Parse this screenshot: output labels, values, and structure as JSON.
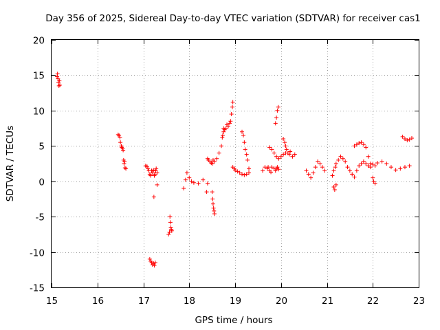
{
  "chart_data": {
    "type": "scatter",
    "title": "Day 356 of 2025, Sidereal Day-to-day VTEC variation (SDTVAR) for receiver cas1",
    "xlabel": "GPS time / hours",
    "ylabel": "SDTVAR / TECUs",
    "xlim": [
      15,
      23
    ],
    "ylim": [
      -15,
      20
    ],
    "xticks": [
      15,
      16,
      17,
      18,
      19,
      20,
      21,
      22,
      23
    ],
    "yticks": [
      -15,
      -10,
      -5,
      0,
      5,
      10,
      15,
      20
    ],
    "grid": true,
    "legend": "none",
    "marker": "plus",
    "color": "#ff0000",
    "series": [
      {
        "name": "SDTVAR",
        "x": [
          15.12,
          15.13,
          15.14,
          15.15,
          15.16,
          15.17,
          15.18,
          16.45,
          16.47,
          16.49,
          16.5,
          16.52,
          16.53,
          16.55,
          16.56,
          16.57,
          16.58,
          16.59,
          16.6,
          16.62,
          17.05,
          17.08,
          17.1,
          17.12,
          17.14,
          17.16,
          17.18,
          17.2,
          17.22,
          17.24,
          17.25,
          17.27,
          17.28,
          17.3,
          17.14,
          17.16,
          17.18,
          17.2,
          17.22,
          17.24,
          17.26,
          17.23,
          17.3,
          17.55,
          17.57,
          17.58,
          17.59,
          17.6,
          17.61,
          17.62,
          17.88,
          17.92,
          17.95,
          18.0,
          18.05,
          18.1,
          18.2,
          18.3,
          18.38,
          18.4,
          18.4,
          18.42,
          18.45,
          18.48,
          18.5,
          18.52,
          18.55,
          18.6,
          18.65,
          18.7,
          18.72,
          18.75,
          18.5,
          18.51,
          18.52,
          18.53,
          18.54,
          18.55,
          18.73,
          18.75,
          18.77,
          18.8,
          18.82,
          18.85,
          18.88,
          18.9,
          18.92,
          18.94,
          18.95,
          18.95,
          18.98,
          19.0,
          19.05,
          19.1,
          19.15,
          19.2,
          19.25,
          19.3,
          19.15,
          19.18,
          19.2,
          19.22,
          19.25,
          19.27,
          19.3,
          19.6,
          19.65,
          19.7,
          19.72,
          19.75,
          19.78,
          19.8,
          19.85,
          19.88,
          19.9,
          19.92,
          19.95,
          19.75,
          19.8,
          19.85,
          19.9,
          19.95,
          20.0,
          20.05,
          20.1,
          19.88,
          19.9,
          19.92,
          19.94,
          20.05,
          20.08,
          20.1,
          20.12,
          20.15,
          20.18,
          20.2,
          20.25,
          20.3,
          20.55,
          20.6,
          20.65,
          20.7,
          20.75,
          20.8,
          20.85,
          20.9,
          20.95,
          21.12,
          21.15,
          21.18,
          21.2,
          21.25,
          21.3,
          21.35,
          21.4,
          21.45,
          21.5,
          21.55,
          21.6,
          21.65,
          21.7,
          21.75,
          21.8,
          21.85,
          21.9,
          21.95,
          22.0,
          22.05,
          22.1,
          22.2,
          22.3,
          22.4,
          22.5,
          22.6,
          22.7,
          22.8,
          21.15,
          21.17,
          21.2,
          21.6,
          21.65,
          21.7,
          21.75,
          21.8,
          21.85,
          21.9,
          21.95,
          22.0,
          22.02,
          22.05,
          22.65,
          22.7,
          22.75,
          22.8,
          22.85
        ],
        "y": [
          14.8,
          15.2,
          14.5,
          14.0,
          13.5,
          14.2,
          13.6,
          6.6,
          6.5,
          6.2,
          5.5,
          5.0,
          4.8,
          4.6,
          4.4,
          3.0,
          2.5,
          2.8,
          1.9,
          1.8,
          2.2,
          2.1,
          1.8,
          1.5,
          1.0,
          0.8,
          1.5,
          1.2,
          1.6,
          0.8,
          1.0,
          1.5,
          1.8,
          1.2,
          -11.0,
          -11.3,
          -11.5,
          -11.8,
          -11.6,
          -11.9,
          -11.5,
          -2.2,
          -0.5,
          -7.5,
          -7.2,
          -5.0,
          -5.8,
          -6.5,
          -6.8,
          -7.0,
          -1.0,
          0.2,
          1.2,
          0.5,
          0.0,
          -0.2,
          -0.3,
          0.2,
          -1.5,
          -0.3,
          3.2,
          3.0,
          2.8,
          2.6,
          2.5,
          3.0,
          2.8,
          3.2,
          4.0,
          5.0,
          6.2,
          7.5,
          -1.5,
          -2.5,
          -3.2,
          -3.8,
          -4.2,
          -4.6,
          6.5,
          7.0,
          7.3,
          7.5,
          8.0,
          7.8,
          8.2,
          8.5,
          9.5,
          10.5,
          11.2,
          2.0,
          1.8,
          1.6,
          1.4,
          1.2,
          1.0,
          0.9,
          1.0,
          1.2,
          7.0,
          6.5,
          5.5,
          4.5,
          3.8,
          3.0,
          1.8,
          1.5,
          2.0,
          1.8,
          2.0,
          1.5,
          1.3,
          2.0,
          1.8,
          1.5,
          1.8,
          2.0,
          1.7,
          4.8,
          4.5,
          4.0,
          3.5,
          3.2,
          3.5,
          3.8,
          4.0,
          8.2,
          9.0,
          10.0,
          10.5,
          6.0,
          5.5,
          5.0,
          4.5,
          4.0,
          3.8,
          4.2,
          3.5,
          3.8,
          1.5,
          1.0,
          0.5,
          1.2,
          2.0,
          2.8,
          2.5,
          2.0,
          1.5,
          0.8,
          1.5,
          2.0,
          2.5,
          3.0,
          3.5,
          3.2,
          2.8,
          2.0,
          1.5,
          1.0,
          0.6,
          1.5,
          2.2,
          2.5,
          2.8,
          2.5,
          2.2,
          2.0,
          2.4,
          2.2,
          2.6,
          2.8,
          2.5,
          2.0,
          1.6,
          1.8,
          2.0,
          2.2,
          -0.8,
          -1.2,
          -0.5,
          5.0,
          5.2,
          5.4,
          5.5,
          5.2,
          4.8,
          3.5,
          2.5,
          0.5,
          0.0,
          -0.3,
          6.3,
          6.0,
          5.8,
          5.9,
          6.1
        ]
      }
    ]
  }
}
